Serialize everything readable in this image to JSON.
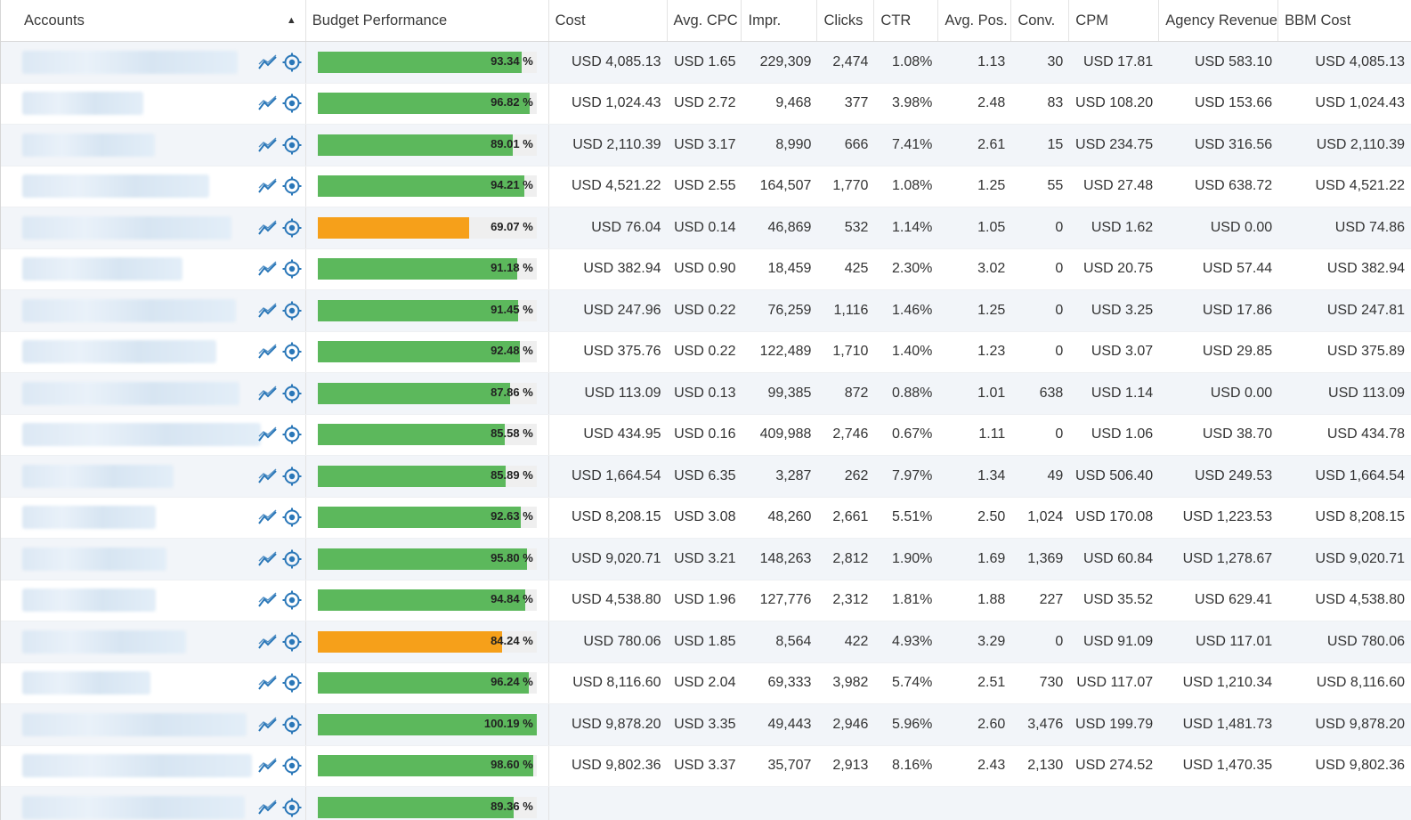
{
  "columns": [
    "Accounts",
    "Budget Performance",
    "Cost",
    "Avg. CPC",
    "Impr.",
    "Clicks",
    "CTR",
    "Avg. Pos.",
    "Conv.",
    "CPM",
    "Agency Revenue",
    "BBM Cost"
  ],
  "sort_indicator": "▲",
  "icons": {
    "trend": "trend-chart-icon",
    "target": "target-icon"
  },
  "colors": {
    "good": "#5cb85c",
    "warn": "#f6a01a",
    "icon": "#2a77b8"
  },
  "rows": [
    {
      "budget_pct": 93.34,
      "budget": "93.34 %",
      "status": "good",
      "cost": "USD 4,085.13",
      "cpc": "USD 1.65",
      "impr": "229,309",
      "clicks": "2,474",
      "ctr": "1.08%",
      "pos": "1.13",
      "conv": "30",
      "cpm": "USD 17.81",
      "agency": "USD 583.10",
      "bbm": "USD 4,085.13"
    },
    {
      "budget_pct": 96.82,
      "budget": "96.82 %",
      "status": "good",
      "cost": "USD 1,024.43",
      "cpc": "USD 2.72",
      "impr": "9,468",
      "clicks": "377",
      "ctr": "3.98%",
      "pos": "2.48",
      "conv": "83",
      "cpm": "USD 108.20",
      "agency": "USD 153.66",
      "bbm": "USD 1,024.43"
    },
    {
      "budget_pct": 89.01,
      "budget": "89.01 %",
      "status": "good",
      "cost": "USD 2,110.39",
      "cpc": "USD 3.17",
      "impr": "8,990",
      "clicks": "666",
      "ctr": "7.41%",
      "pos": "2.61",
      "conv": "15",
      "cpm": "USD 234.75",
      "agency": "USD 316.56",
      "bbm": "USD 2,110.39"
    },
    {
      "budget_pct": 94.21,
      "budget": "94.21 %",
      "status": "good",
      "cost": "USD 4,521.22",
      "cpc": "USD 2.55",
      "impr": "164,507",
      "clicks": "1,770",
      "ctr": "1.08%",
      "pos": "1.25",
      "conv": "55",
      "cpm": "USD 27.48",
      "agency": "USD 638.72",
      "bbm": "USD 4,521.22"
    },
    {
      "budget_pct": 69.07,
      "budget": "69.07 %",
      "status": "warn",
      "cost": "USD 76.04",
      "cpc": "USD 0.14",
      "impr": "46,869",
      "clicks": "532",
      "ctr": "1.14%",
      "pos": "1.05",
      "conv": "0",
      "cpm": "USD 1.62",
      "agency": "USD 0.00",
      "bbm": "USD 74.86"
    },
    {
      "budget_pct": 91.18,
      "budget": "91.18 %",
      "status": "good",
      "cost": "USD 382.94",
      "cpc": "USD 0.90",
      "impr": "18,459",
      "clicks": "425",
      "ctr": "2.30%",
      "pos": "3.02",
      "conv": "0",
      "cpm": "USD 20.75",
      "agency": "USD 57.44",
      "bbm": "USD 382.94"
    },
    {
      "budget_pct": 91.45,
      "budget": "91.45 %",
      "status": "good",
      "cost": "USD 247.96",
      "cpc": "USD 0.22",
      "impr": "76,259",
      "clicks": "1,116",
      "ctr": "1.46%",
      "pos": "1.25",
      "conv": "0",
      "cpm": "USD 3.25",
      "agency": "USD 17.86",
      "bbm": "USD 247.81"
    },
    {
      "budget_pct": 92.48,
      "budget": "92.48 %",
      "status": "good",
      "cost": "USD 375.76",
      "cpc": "USD 0.22",
      "impr": "122,489",
      "clicks": "1,710",
      "ctr": "1.40%",
      "pos": "1.23",
      "conv": "0",
      "cpm": "USD 3.07",
      "agency": "USD 29.85",
      "bbm": "USD 375.89"
    },
    {
      "budget_pct": 87.86,
      "budget": "87.86 %",
      "status": "good",
      "cost": "USD 113.09",
      "cpc": "USD 0.13",
      "impr": "99,385",
      "clicks": "872",
      "ctr": "0.88%",
      "pos": "1.01",
      "conv": "638",
      "cpm": "USD 1.14",
      "agency": "USD 0.00",
      "bbm": "USD 113.09"
    },
    {
      "budget_pct": 85.58,
      "budget": "85.58 %",
      "status": "good",
      "cost": "USD 434.95",
      "cpc": "USD 0.16",
      "impr": "409,988",
      "clicks": "2,746",
      "ctr": "0.67%",
      "pos": "1.11",
      "conv": "0",
      "cpm": "USD 1.06",
      "agency": "USD 38.70",
      "bbm": "USD 434.78"
    },
    {
      "budget_pct": 85.89,
      "budget": "85.89 %",
      "status": "good",
      "cost": "USD 1,664.54",
      "cpc": "USD 6.35",
      "impr": "3,287",
      "clicks": "262",
      "ctr": "7.97%",
      "pos": "1.34",
      "conv": "49",
      "cpm": "USD 506.40",
      "agency": "USD 249.53",
      "bbm": "USD 1,664.54"
    },
    {
      "budget_pct": 92.63,
      "budget": "92.63 %",
      "status": "good",
      "cost": "USD 8,208.15",
      "cpc": "USD 3.08",
      "impr": "48,260",
      "clicks": "2,661",
      "ctr": "5.51%",
      "pos": "2.50",
      "conv": "1,024",
      "cpm": "USD 170.08",
      "agency": "USD 1,223.53",
      "bbm": "USD 8,208.15"
    },
    {
      "budget_pct": 95.8,
      "budget": "95.80 %",
      "status": "good",
      "cost": "USD 9,020.71",
      "cpc": "USD 3.21",
      "impr": "148,263",
      "clicks": "2,812",
      "ctr": "1.90%",
      "pos": "1.69",
      "conv": "1,369",
      "cpm": "USD 60.84",
      "agency": "USD 1,278.67",
      "bbm": "USD 9,020.71"
    },
    {
      "budget_pct": 94.84,
      "budget": "94.84 %",
      "status": "good",
      "cost": "USD 4,538.80",
      "cpc": "USD 1.96",
      "impr": "127,776",
      "clicks": "2,312",
      "ctr": "1.81%",
      "pos": "1.88",
      "conv": "227",
      "cpm": "USD 35.52",
      "agency": "USD 629.41",
      "bbm": "USD 4,538.80"
    },
    {
      "budget_pct": 84.24,
      "budget": "84.24 %",
      "status": "warn",
      "cost": "USD 780.06",
      "cpc": "USD 1.85",
      "impr": "8,564",
      "clicks": "422",
      "ctr": "4.93%",
      "pos": "3.29",
      "conv": "0",
      "cpm": "USD 91.09",
      "agency": "USD 117.01",
      "bbm": "USD 780.06"
    },
    {
      "budget_pct": 96.24,
      "budget": "96.24 %",
      "status": "good",
      "cost": "USD 8,116.60",
      "cpc": "USD 2.04",
      "impr": "69,333",
      "clicks": "3,982",
      "ctr": "5.74%",
      "pos": "2.51",
      "conv": "730",
      "cpm": "USD 117.07",
      "agency": "USD 1,210.34",
      "bbm": "USD 8,116.60"
    },
    {
      "budget_pct": 100.19,
      "budget": "100.19 %",
      "status": "good",
      "cost": "USD 9,878.20",
      "cpc": "USD 3.35",
      "impr": "49,443",
      "clicks": "2,946",
      "ctr": "5.96%",
      "pos": "2.60",
      "conv": "3,476",
      "cpm": "USD 199.79",
      "agency": "USD 1,481.73",
      "bbm": "USD 9,878.20"
    },
    {
      "budget_pct": 98.6,
      "budget": "98.60 %",
      "status": "good",
      "cost": "USD 9,802.36",
      "cpc": "USD 3.37",
      "impr": "35,707",
      "clicks": "2,913",
      "ctr": "8.16%",
      "pos": "2.43",
      "conv": "2,130",
      "cpm": "USD 274.52",
      "agency": "USD 1,470.35",
      "bbm": "USD 9,802.36"
    },
    {
      "budget_pct": 89.36,
      "budget": "89.36 %",
      "status": "good",
      "cost": "",
      "cpc": "",
      "impr": "",
      "clicks": "",
      "ctr": "",
      "pos": "",
      "conv": "",
      "cpm": "",
      "agency": "",
      "bbm": ""
    }
  ]
}
